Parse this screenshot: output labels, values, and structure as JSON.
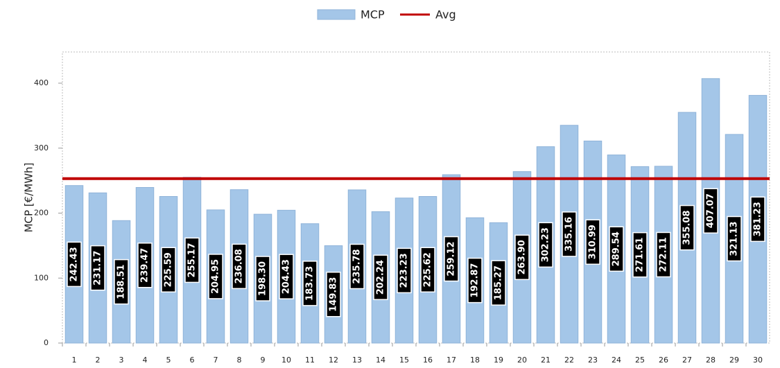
{
  "chart_data": {
    "type": "bar",
    "y_label": "MCP [€/MWh]",
    "categories": [
      "1",
      "2",
      "3",
      "4",
      "5",
      "6",
      "7",
      "8",
      "9",
      "10",
      "11",
      "12",
      "13",
      "14",
      "15",
      "16",
      "17",
      "18",
      "19",
      "20",
      "21",
      "22",
      "23",
      "24",
      "25",
      "26",
      "27",
      "28",
      "29",
      "30"
    ],
    "series": [
      {
        "name": "MCP",
        "color": "#a4c6e8",
        "type": "bar",
        "values": [
          242.43,
          231.17,
          188.51,
          239.47,
          225.59,
          255.17,
          204.95,
          236.08,
          198.3,
          204.43,
          183.73,
          149.83,
          235.78,
          202.24,
          223.23,
          225.62,
          259.12,
          192.87,
          185.27,
          263.9,
          302.23,
          335.16,
          310.99,
          289.54,
          271.61,
          272.11,
          355.08,
          407.07,
          321.13,
          381.23
        ],
        "value_labels": [
          "242.43",
          "231.17",
          "188.51",
          "239.47",
          "225.59",
          "255.17",
          "204.95",
          "236.08",
          "198.30",
          "204.43",
          "183.73",
          "149.83",
          "235.78",
          "202.24",
          "223.23",
          "225.62",
          "259.12",
          "192.87",
          "185.27",
          "263.90",
          "302.23",
          "335.16",
          "310.99",
          "289.54",
          "271.61",
          "272.11",
          "355.08",
          "407.07",
          "321.13",
          "381.23"
        ]
      },
      {
        "name": "Avg",
        "color": "#c00000",
        "type": "line",
        "values": [
          253.13,
          253.13,
          253.13,
          253.13,
          253.13,
          253.13,
          253.13,
          253.13,
          253.13,
          253.13,
          253.13,
          253.13,
          253.13,
          253.13,
          253.13,
          253.13,
          253.13,
          253.13,
          253.13,
          253.13,
          253.13,
          253.13,
          253.13,
          253.13,
          253.13,
          253.13,
          253.13,
          253.13,
          253.13,
          253.13
        ]
      }
    ],
    "ylim": [
      0,
      448
    ],
    "yticks": [
      0,
      100,
      200,
      300,
      400
    ],
    "grid": false
  }
}
